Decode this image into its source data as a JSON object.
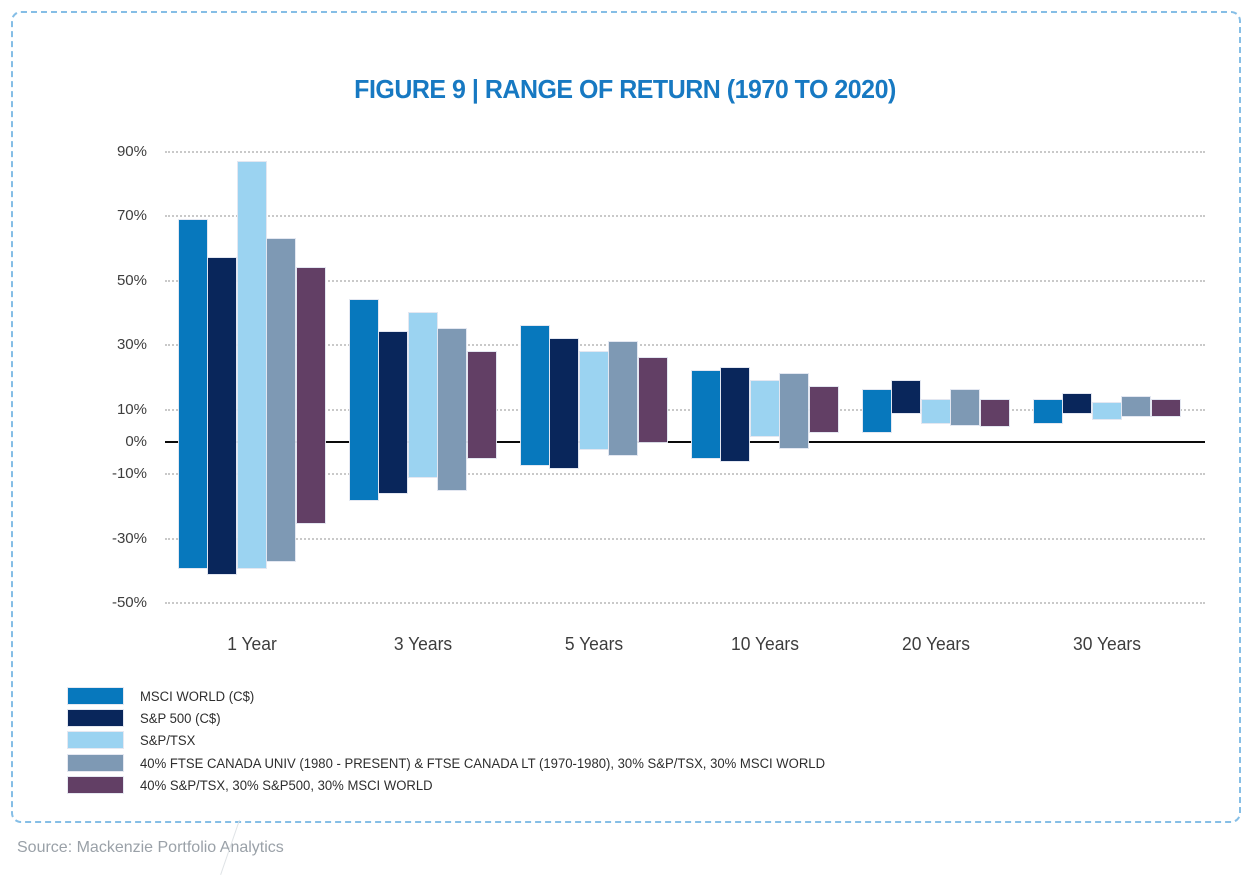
{
  "figure": {
    "title": "FIGURE 9 | RANGE OF RETURN (1970 TO 2020)",
    "title_color": "#1779c2",
    "border_color": "#85bee6",
    "source": "Source: Mackenzie Portfolio Analytics"
  },
  "chart_data": {
    "type": "bar",
    "subtype": "floating-range-bar",
    "title": "FIGURE 9 | RANGE OF RETURN (1970 TO 2020)",
    "units": "percent",
    "categories": [
      "1 Year",
      "3 Years",
      "5 Years",
      "10 Years",
      "20 Years",
      "30 Years"
    ],
    "series": [
      {
        "name": "MSCI WORLD (C$)",
        "color": "#0778bd",
        "ranges": [
          [
            -39,
            69
          ],
          [
            -18,
            44
          ],
          [
            -7,
            36
          ],
          [
            -5,
            22
          ],
          [
            3,
            16
          ],
          [
            6,
            13
          ]
        ]
      },
      {
        "name": "S&P 500 (C$)",
        "color": "#09265b",
        "ranges": [
          [
            -41,
            57
          ],
          [
            -16,
            34
          ],
          [
            -8,
            32
          ],
          [
            -6,
            23
          ],
          [
            9,
            19
          ],
          [
            9,
            15
          ]
        ]
      },
      {
        "name": "S&P/TSX",
        "color": "#9bd3f1",
        "ranges": [
          [
            -39,
            87
          ],
          [
            -11,
            40
          ],
          [
            -2,
            28
          ],
          [
            2,
            19
          ],
          [
            6,
            13
          ],
          [
            7,
            12
          ]
        ]
      },
      {
        "name": "40% FTSE CANADA UNIV (1980 - PRESENT) & FTSE CANADA LT (1970-1980), 30% S&P/TSX, 30% MSCI WORLD",
        "color": "#7e99b4",
        "ranges": [
          [
            -37,
            63
          ],
          [
            -15,
            35
          ],
          [
            -4,
            31
          ],
          [
            -2,
            21
          ],
          [
            5,
            16
          ],
          [
            8,
            14
          ]
        ]
      },
      {
        "name": "40% S&P/TSX, 30% S&P500, 30% MSCI WORLD",
        "color": "#623f65",
        "ranges": [
          [
            -25,
            54
          ],
          [
            -5,
            28
          ],
          [
            0,
            26
          ],
          [
            3,
            17
          ],
          [
            5,
            13
          ],
          [
            8,
            13
          ]
        ]
      }
    ],
    "xlabel": "",
    "ylabel": "",
    "ylim": [
      -50,
      90
    ],
    "y_ticks": [
      {
        "value": 90,
        "label": "90%"
      },
      {
        "value": 70,
        "label": "70%"
      },
      {
        "value": 50,
        "label": "50%"
      },
      {
        "value": 30,
        "label": "30%"
      },
      {
        "value": 10,
        "label": "10%"
      },
      {
        "value": 0,
        "label": "0%"
      },
      {
        "value": -10,
        "label": "-10%"
      },
      {
        "value": -30,
        "label": "-30%"
      },
      {
        "value": -50,
        "label": "-50%"
      }
    ],
    "dotted_gridlines": [
      90,
      70,
      50,
      30,
      10,
      -10,
      -30,
      -50
    ],
    "zero_line": true,
    "grid": true,
    "legend_position": "bottom-left"
  }
}
